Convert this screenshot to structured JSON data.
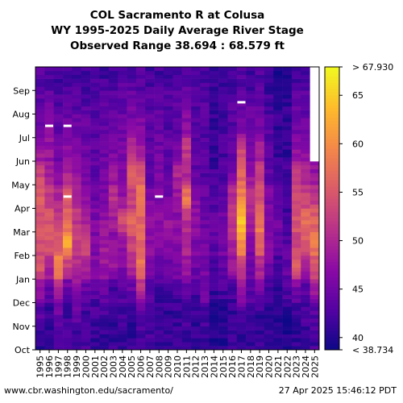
{
  "title_lines": [
    "COL Sacramento R at Colusa",
    "WY 1995-2025 Daily Average River Stage",
    "Observed Range 38.694 : 68.579 ft"
  ],
  "footer": {
    "source": "www.cbr.washington.edu/sacramento/",
    "timestamp": "27 Apr 2025 15:46:12 PDT"
  },
  "chart_data": {
    "type": "heatmap",
    "title": "COL Sacramento R at Colusa WY 1995-2025 Daily Average River Stage",
    "subtitle": "Observed Range 38.694 : 68.579 ft",
    "x_categories": [
      "1995",
      "1996",
      "1997",
      "1998",
      "1999",
      "2000",
      "2001",
      "2002",
      "2003",
      "2004",
      "2005",
      "2006",
      "2007",
      "2008",
      "2009",
      "2010",
      "2011",
      "2012",
      "2013",
      "2014",
      "2015",
      "2016",
      "2017",
      "2018",
      "2019",
      "2020",
      "2021",
      "2022",
      "2023",
      "2024",
      "2025"
    ],
    "y_categories": [
      "Oct",
      "Nov",
      "Dec",
      "Jan",
      "Feb",
      "Mar",
      "Apr",
      "May",
      "Jun",
      "Jul",
      "Aug",
      "Sep"
    ],
    "colorbar": {
      "min": 38.734,
      "max": 67.93,
      "ticks": [
        40,
        45,
        50,
        55,
        60,
        65
      ],
      "min_label": "< 38.734",
      "max_label": "> 67.930",
      "colorscale": "plasma"
    },
    "monthly_average_ft": [
      [
        41,
        43,
        47,
        55,
        54,
        54,
        56,
        53,
        48,
        44,
        44,
        43
      ],
      [
        41,
        41,
        44,
        50,
        55,
        55,
        52,
        49,
        48,
        47,
        45,
        42
      ],
      [
        42,
        45,
        48,
        60,
        55,
        52,
        50,
        47,
        45,
        44,
        43,
        42
      ],
      [
        42,
        42,
        44,
        52,
        62,
        57,
        55,
        50,
        47,
        45,
        43,
        42
      ],
      [
        42,
        44,
        47,
        50,
        53,
        52,
        50,
        48,
        46,
        45,
        43,
        42
      ],
      [
        42,
        42,
        44,
        50,
        53,
        49,
        48,
        46,
        45,
        44,
        43,
        42
      ],
      [
        41,
        42,
        43,
        47,
        46,
        46,
        45,
        44,
        44,
        43,
        43,
        42
      ],
      [
        41,
        42,
        44,
        48,
        49,
        48,
        46,
        45,
        45,
        44,
        44,
        42
      ],
      [
        41,
        41,
        42,
        48,
        47,
        49,
        51,
        48,
        46,
        45,
        43,
        42
      ],
      [
        41,
        42,
        43,
        46,
        48,
        54,
        48,
        47,
        46,
        45,
        44,
        43
      ],
      [
        41,
        41,
        44,
        50,
        53,
        56,
        52,
        55,
        51,
        46,
        45,
        43
      ],
      [
        42,
        43,
        50,
        58,
        56,
        56,
        58,
        54,
        49,
        46,
        45,
        43
      ],
      [
        42,
        42,
        43,
        46,
        47,
        47,
        46,
        44,
        44,
        44,
        43,
        42
      ],
      [
        41,
        41,
        42,
        45,
        46,
        47,
        46,
        46,
        45,
        44,
        44,
        42
      ],
      [
        41,
        41,
        42,
        45,
        47,
        48,
        45,
        44,
        44,
        43,
        43,
        42
      ],
      [
        41,
        41,
        42,
        46,
        47,
        47,
        48,
        50,
        45,
        44,
        44,
        42
      ],
      [
        41,
        42,
        44,
        48,
        50,
        51,
        58,
        50,
        52,
        47,
        45,
        43
      ],
      [
        41,
        41,
        42,
        45,
        46,
        48,
        47,
        44,
        43,
        43,
        43,
        42
      ],
      [
        41,
        42,
        45,
        46,
        45,
        45,
        44,
        43,
        43,
        43,
        43,
        42
      ],
      [
        40,
        40,
        41,
        42,
        44,
        44,
        43,
        42,
        41,
        41,
        41,
        41
      ],
      [
        40,
        40,
        42,
        44,
        46,
        45,
        44,
        43,
        42,
        42,
        42,
        41
      ],
      [
        41,
        41,
        42,
        48,
        50,
        52,
        51,
        45,
        44,
        43,
        43,
        42
      ],
      [
        41,
        43,
        48,
        52,
        60,
        64,
        59,
        56,
        53,
        46,
        45,
        43
      ],
      [
        41,
        42,
        43,
        45,
        46,
        49,
        52,
        48,
        45,
        44,
        44,
        42
      ],
      [
        41,
        41,
        45,
        50,
        57,
        58,
        54,
        53,
        49,
        45,
        44,
        43
      ],
      [
        41,
        41,
        42,
        45,
        47,
        46,
        46,
        44,
        43,
        43,
        42,
        41
      ],
      [
        40,
        40,
        40,
        42,
        44,
        45,
        44,
        42,
        41,
        41,
        41,
        40
      ],
      [
        40,
        40,
        43,
        44,
        43,
        42,
        42,
        42,
        41,
        41,
        41,
        40
      ],
      [
        41,
        41,
        45,
        56,
        53,
        55,
        54,
        52,
        47,
        45,
        44,
        42
      ],
      [
        41,
        42,
        43,
        48,
        55,
        57,
        53,
        50,
        47,
        45,
        44,
        42
      ],
      [
        42,
        43,
        48,
        54,
        58,
        56,
        52,
        48,
        null,
        null,
        null,
        null
      ]
    ],
    "missing_data_marks": [
      {
        "year": "1996",
        "month": "Jul"
      },
      {
        "year": "1998",
        "month": "Jul"
      },
      {
        "year": "1998",
        "month": "Apr"
      },
      {
        "year": "2008",
        "month": "Apr"
      },
      {
        "year": "2017",
        "month": "Aug"
      }
    ]
  }
}
